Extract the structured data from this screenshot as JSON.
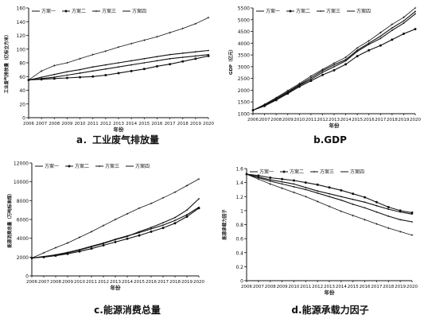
{
  "chart_data": [
    {
      "type": "line",
      "caption": "a．工业废气排放量",
      "ylabel": "工业废气排放量（亿标立方米）",
      "xlabel": "年份",
      "categories": [
        "2006",
        "2007",
        "2008",
        "2009",
        "2010",
        "2011",
        "2012",
        "2013",
        "2014",
        "2015",
        "2016",
        "2017",
        "2018",
        "2019",
        "2020"
      ],
      "ylim": [
        0,
        160
      ],
      "yticks": [
        0,
        20,
        40,
        60,
        80,
        100,
        120,
        140,
        160
      ],
      "legend_position": "top-left",
      "series": [
        {
          "name": "方案一",
          "values": [
            55,
            57,
            59,
            62,
            65,
            68,
            71,
            74,
            77,
            80,
            83,
            86,
            88,
            90,
            92
          ]
        },
        {
          "name": "方案二",
          "values": [
            55,
            56,
            57,
            58,
            59,
            60,
            62,
            65,
            68,
            71,
            75,
            78,
            82,
            86,
            90
          ]
        },
        {
          "name": "方案三",
          "values": [
            55,
            68,
            76,
            80,
            86,
            92,
            97,
            103,
            108,
            113,
            118,
            124,
            130,
            137,
            146
          ]
        },
        {
          "name": "方案四",
          "values": [
            55,
            59,
            63,
            67,
            70,
            74,
            77,
            80,
            83,
            86,
            89,
            92,
            94,
            96,
            98
          ]
        }
      ]
    },
    {
      "type": "line",
      "caption": "b.GDP",
      "ylabel": "GDP（亿元）",
      "xlabel": "年份",
      "categories": [
        "2006",
        "2007",
        "2008",
        "2009",
        "2010",
        "2011",
        "2012",
        "2013",
        "2014",
        "2015",
        "2016",
        "2017",
        "2018",
        "2019",
        "2020"
      ],
      "ylim": [
        1000,
        5500
      ],
      "yticks": [
        1000,
        1500,
        2000,
        2500,
        3000,
        3500,
        4000,
        4500,
        5000,
        5500
      ],
      "legend_position": "top-left",
      "series": [
        {
          "name": "方案一",
          "values": [
            1150,
            1350,
            1620,
            1900,
            2200,
            2460,
            2760,
            3000,
            3250,
            3650,
            3950,
            4200,
            4550,
            4850,
            5250
          ]
        },
        {
          "name": "方案二",
          "values": [
            1150,
            1330,
            1580,
            1860,
            2150,
            2400,
            2650,
            2850,
            3100,
            3450,
            3700,
            3900,
            4150,
            4400,
            4600
          ]
        },
        {
          "name": "方案三",
          "values": [
            1150,
            1400,
            1680,
            1980,
            2280,
            2600,
            2880,
            3150,
            3400,
            3800,
            4100,
            4450,
            4800,
            5100,
            5500
          ]
        },
        {
          "name": "方案四",
          "values": [
            1150,
            1370,
            1640,
            1930,
            2230,
            2530,
            2830,
            3080,
            3300,
            3700,
            4000,
            4300,
            4650,
            4950,
            5350
          ]
        }
      ]
    },
    {
      "type": "line",
      "caption": "c.能源消费总量",
      "ylabel": "能源消费总量（万吨标准煤）",
      "xlabel": "年份",
      "categories": [
        "2006",
        "2007",
        "2008",
        "2009",
        "2010",
        "2011",
        "2012",
        "2013",
        "2014",
        "2015",
        "2016",
        "2017",
        "2018",
        "2019",
        "2020"
      ],
      "ylim": [
        0,
        12000
      ],
      "yticks": [
        0,
        2000,
        4000,
        6000,
        8000,
        10000,
        12000
      ],
      "legend_position": "top",
      "series": [
        {
          "name": "方案一",
          "values": [
            1900,
            2050,
            2200,
            2450,
            2750,
            3100,
            3450,
            3850,
            4200,
            4700,
            5150,
            5650,
            6200,
            7000,
            8200
          ]
        },
        {
          "name": "方案二",
          "values": [
            1900,
            2000,
            2150,
            2350,
            2600,
            2900,
            3250,
            3600,
            3950,
            4300,
            4700,
            5100,
            5600,
            6300,
            7200
          ]
        },
        {
          "name": "方案三",
          "values": [
            1900,
            2450,
            3000,
            3500,
            4100,
            4700,
            5350,
            6000,
            6600,
            7200,
            7700,
            8300,
            8900,
            9600,
            10300
          ]
        },
        {
          "name": "方案四",
          "values": [
            1900,
            2050,
            2250,
            2500,
            2800,
            3150,
            3500,
            3900,
            4250,
            4600,
            5000,
            5400,
            5900,
            6500,
            7300
          ]
        }
      ]
    },
    {
      "type": "line",
      "caption": "d.能源承载力因子",
      "ylabel": "能源承载力因子",
      "xlabel": "年份",
      "categories": [
        "2006",
        "2007",
        "2008",
        "2009",
        "2010",
        "2011",
        "2012",
        "2013",
        "2014",
        "2015",
        "2016",
        "2017",
        "2018",
        "2019",
        "2020"
      ],
      "ylim": [
        0,
        1.6
      ],
      "yticks": [
        0,
        0.2,
        0.4,
        0.6,
        0.8,
        1,
        1.2,
        1.4,
        1.6
      ],
      "legend_position": "top",
      "series": [
        {
          "name": "方案一",
          "values": [
            1.52,
            1.48,
            1.44,
            1.41,
            1.38,
            1.33,
            1.28,
            1.24,
            1.2,
            1.16,
            1.12,
            1.07,
            1.02,
            0.98,
            0.95
          ]
        },
        {
          "name": "方案二",
          "values": [
            1.52,
            1.5,
            1.47,
            1.45,
            1.43,
            1.4,
            1.37,
            1.33,
            1.29,
            1.24,
            1.19,
            1.12,
            1.05,
            1.0,
            0.97
          ]
        },
        {
          "name": "方案三",
          "values": [
            1.52,
            1.45,
            1.38,
            1.32,
            1.26,
            1.2,
            1.13,
            1.06,
            0.99,
            0.93,
            0.87,
            0.81,
            0.75,
            0.7,
            0.65
          ]
        },
        {
          "name": "方案四",
          "values": [
            1.52,
            1.47,
            1.42,
            1.38,
            1.34,
            1.3,
            1.25,
            1.2,
            1.15,
            1.09,
            1.04,
            0.98,
            0.92,
            0.87,
            0.84
          ]
        }
      ]
    }
  ]
}
